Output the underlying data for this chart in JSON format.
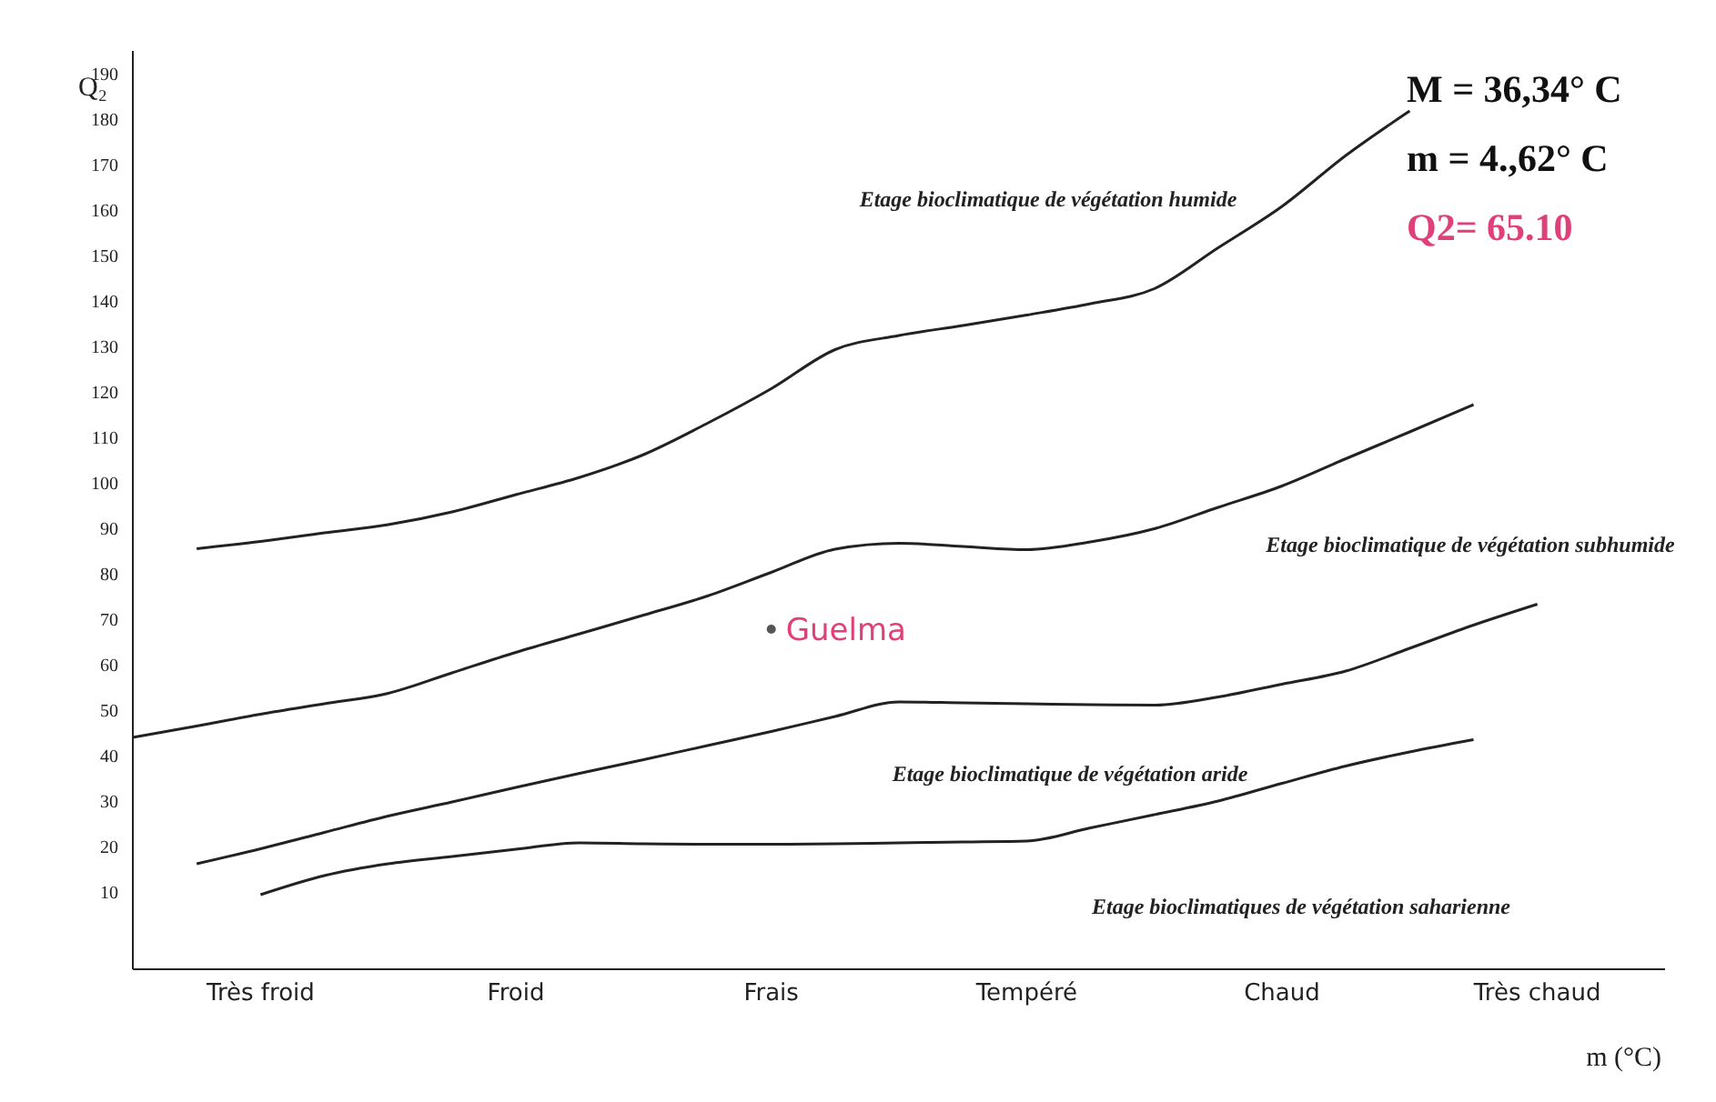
{
  "chart_data": {
    "type": "line",
    "xlabel": "m (°C)",
    "ylabel": "Q₂",
    "categories": [
      null,
      null,
      "Très froid",
      null,
      null,
      null,
      "Froid",
      null,
      null,
      null,
      "Frais",
      null,
      null,
      null,
      "Tempéré",
      null,
      null,
      null,
      "Chaud",
      null,
      null,
      null,
      "Très chaud",
      null,
      null
    ],
    "ylim": [
      -7,
      195
    ],
    "yticks": [
      10,
      20,
      30,
      40,
      50,
      60,
      70,
      80,
      90,
      100,
      110,
      120,
      130,
      140,
      150,
      160,
      170,
      180,
      190
    ],
    "grid": false,
    "marker": "none",
    "line_style": "solid",
    "series": [
      {
        "color": "#222222",
        "values": [
          null,
          85.5,
          87.1,
          89.0,
          90.8,
          93.6,
          97.4,
          101.2,
          106.2,
          113.1,
          120.7,
          129.3,
          132.4,
          134.6,
          136.9,
          139.4,
          142.7,
          151.7,
          160.8,
          172.0,
          181.8,
          null,
          null,
          null,
          null
        ]
      },
      {
        "color": "#222222",
        "values": [
          44.0,
          46.5,
          49.1,
          51.4,
          53.7,
          58.2,
          62.7,
          66.8,
          70.9,
          75.1,
          80.3,
          85.4,
          86.7,
          86.0,
          85.3,
          87.0,
          89.9,
          94.6,
          99.3,
          105.3,
          111.2,
          117.2,
          null,
          null,
          null
        ]
      },
      {
        "color": "#222222",
        "values": [
          null,
          16.2,
          19.5,
          23.1,
          26.7,
          29.8,
          33.0,
          36.1,
          39.1,
          42.2,
          45.3,
          48.6,
          51.8,
          51.6,
          51.4,
          51.2,
          51.1,
          52.9,
          55.7,
          58.6,
          63.6,
          68.7,
          73.3,
          null,
          null
        ]
      },
      {
        "color": "#222222",
        "values": [
          null,
          null,
          9.4,
          13.6,
          16.2,
          17.8,
          19.4,
          20.8,
          20.6,
          20.5,
          20.5,
          20.6,
          20.8,
          21.0,
          21.2,
          24.1,
          27.0,
          30.0,
          33.9,
          37.7,
          40.8,
          43.5,
          null,
          null,
          null
        ]
      },
      {
        "type": "scatter",
        "name": "Guelma",
        "color": "#555555",
        "marker": "circle",
        "values": [
          null,
          null,
          null,
          null,
          null,
          null,
          null,
          null,
          null,
          null,
          67.8,
          null,
          null,
          null,
          null,
          null,
          null,
          null,
          null,
          null,
          null,
          null,
          null,
          null,
          null
        ]
      }
    ],
    "annotations": [
      "Etage bioclimatique de végétation humide",
      "Etage bioclimatique de végétation subhumide",
      "Etage bioclimatique de végétation aride",
      "Etage bioclimatiques de végétation saharienne",
      "M = 36,34° C",
      "m = 4.,62° C",
      "Q2= 65.10"
    ]
  }
}
